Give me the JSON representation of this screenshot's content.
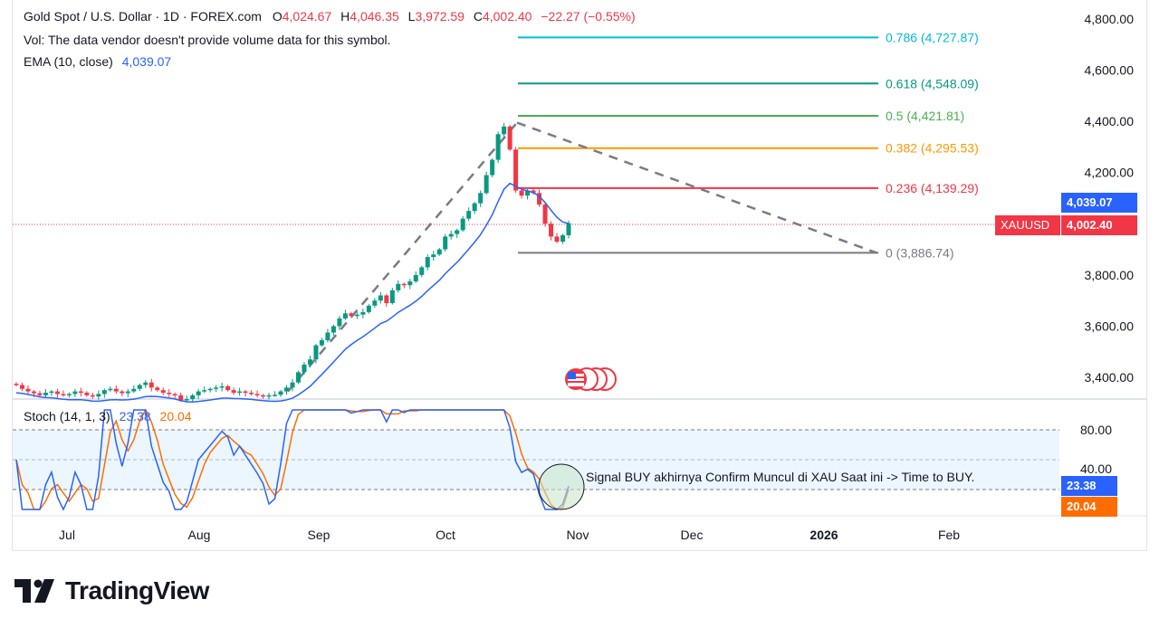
{
  "header": {
    "symbol": "Gold Spot / U.S. Dollar · 1D · FOREX.com",
    "open_label": "O",
    "open": "4,024.67",
    "high_label": "H",
    "high": "4,046.35",
    "low_label": "L",
    "low": "3,972.59",
    "close_label": "C",
    "close": "4,002.40",
    "change": "−22.27 (−0.55%)",
    "vol_text": "Vol: The data vendor doesn't provide volume data for this symbol.",
    "ema_label": "EMA (10, close)",
    "ema_value": "4,039.07"
  },
  "stoch": {
    "label": "Stoch (14, 1, 3)",
    "k_value": "23.38",
    "d_value": "20.04",
    "k_color": "#2962ff",
    "d_color": "#ff6d00"
  },
  "price_axis": [
    "4,800.00",
    "4,600.00",
    "4,400.00",
    "4,200.00",
    "3,800.00",
    "3,600.00",
    "3,400.00"
  ],
  "stoch_axis": [
    "80.00",
    "40.00"
  ],
  "time_axis": [
    "Jul",
    "Aug",
    "Sep",
    "Oct",
    "Nov",
    "Dec",
    "2026",
    "Feb"
  ],
  "tags": {
    "ema_tag": "4,039.07",
    "symbol_tag": "XAUUSD",
    "price_tag": "4,002.40",
    "k_tag": "23.38",
    "d_tag": "20.04"
  },
  "fib_levels": [
    {
      "ratio": "0.786",
      "price": 4727.87,
      "label": "0.786 (4,727.87)",
      "color": "#00bcd4"
    },
    {
      "ratio": "0.618",
      "price": 4548.09,
      "label": "0.618 (4,548.09)",
      "color": "#089981"
    },
    {
      "ratio": "0.5",
      "price": 4421.81,
      "label": "0.5 (4,421.81)",
      "color": "#4caf50"
    },
    {
      "ratio": "0.382",
      "price": 4295.53,
      "label": "0.382 (4,295.53)",
      "color": "#ff9800"
    },
    {
      "ratio": "0.236",
      "price": 4139.29,
      "label": "0.236 (4,139.29)",
      "color": "#f23645"
    },
    {
      "ratio": "0",
      "price": 3886.74,
      "label": "0 (3,886.74)",
      "color": "#787b86"
    }
  ],
  "annotation": "Signal BUY akhirnya Confirm Muncul di XAU Saat ini -> Time to BUY.",
  "brand": "TradingView",
  "colors": {
    "up": "#089981",
    "down": "#f23645",
    "ema": "#2962ff",
    "grid": "#f0f3fa"
  },
  "chart_data": {
    "type": "candlestick",
    "title": "Gold Spot / U.S. Dollar · 1D · FOREX.com",
    "ylim": [
      3300,
      4850
    ],
    "x_labels": [
      "Jul",
      "Aug",
      "Sep",
      "Oct",
      "Nov",
      "Dec",
      "2026",
      "Feb"
    ],
    "series": [
      {
        "name": "Gold Spot / U.S. Dollar",
        "type": "candlestick",
        "closes": [
          3370,
          3355,
          3345,
          3338,
          3330,
          3340,
          3345,
          3335,
          3330,
          3335,
          3345,
          3340,
          3330,
          3325,
          3335,
          3350,
          3355,
          3345,
          3338,
          3345,
          3355,
          3370,
          3380,
          3360,
          3350,
          3340,
          3335,
          3330,
          3310,
          3315,
          3330,
          3345,
          3350,
          3355,
          3360,
          3365,
          3350,
          3340,
          3345,
          3340,
          3335,
          3330,
          3328,
          3330,
          3332,
          3345,
          3360,
          3380,
          3420,
          3450,
          3470,
          3525,
          3545,
          3575,
          3600,
          3630,
          3650,
          3640,
          3645,
          3655,
          3680,
          3700,
          3720,
          3690,
          3740,
          3765,
          3760,
          3775,
          3800,
          3830,
          3870,
          3880,
          3900,
          3950,
          3960,
          3975,
          4020,
          4050,
          4080,
          4120,
          4190,
          4250,
          4350,
          4380,
          4290,
          4130,
          4110,
          4130,
          4120,
          4075,
          4000,
          3950,
          3930,
          3955,
          4002.4
        ]
      },
      {
        "name": "EMA (10, close)",
        "type": "line",
        "last": 4039.07
      }
    ],
    "fibonacci": [
      {
        "level": 0.786,
        "price": 4727.87
      },
      {
        "level": 0.618,
        "price": 4548.09
      },
      {
        "level": 0.5,
        "price": 4421.81
      },
      {
        "level": 0.382,
        "price": 4295.53
      },
      {
        "level": 0.236,
        "price": 4139.29
      },
      {
        "level": 0,
        "price": 3886.74
      }
    ],
    "stochastic": {
      "params": "14, 1, 3",
      "k_last": 23.38,
      "d_last": 20.04,
      "ylim": [
        0,
        100
      ],
      "bands": [
        20,
        80
      ]
    }
  }
}
